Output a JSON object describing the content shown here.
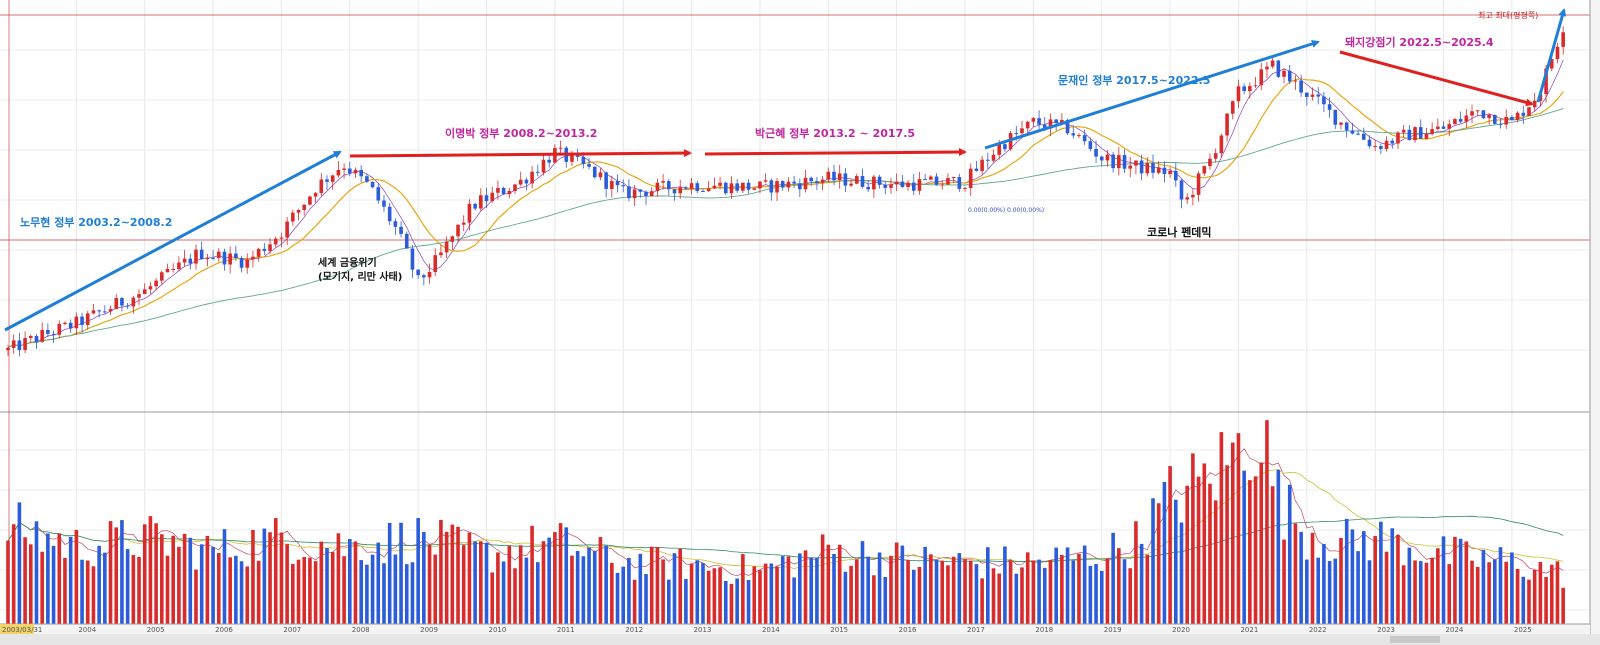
{
  "chart_data": {
    "type": "candlestick",
    "x_ticks": [
      "2004",
      "2005",
      "2006",
      "2007",
      "2008",
      "2009",
      "2010",
      "2011",
      "2012",
      "2013",
      "2014",
      "2015",
      "2016",
      "2017",
      "2018",
      "2019",
      "2020",
      "2021",
      "2022",
      "2023",
      "2024",
      "2025"
    ],
    "start_label": "2003/03/31",
    "price_ylim": [
      0,
      100
    ],
    "volume_ylim": [
      0,
      100
    ],
    "volume_rising_color": "#d92b2b",
    "volume_falling_color": "#2b5cd9",
    "close_trend_anchors": [
      {
        "x": 2003.0,
        "y": 5
      },
      {
        "x": 2003.5,
        "y": 10
      },
      {
        "x": 2004.0,
        "y": 14
      },
      {
        "x": 2005.0,
        "y": 25
      },
      {
        "x": 2005.8,
        "y": 38
      },
      {
        "x": 2006.5,
        "y": 35
      },
      {
        "x": 2007.0,
        "y": 45
      },
      {
        "x": 2007.5,
        "y": 60
      },
      {
        "x": 2007.9,
        "y": 68
      },
      {
        "x": 2008.3,
        "y": 60
      },
      {
        "x": 2008.7,
        "y": 45
      },
      {
        "x": 2009.0,
        "y": 28
      },
      {
        "x": 2009.3,
        "y": 36
      },
      {
        "x": 2009.8,
        "y": 54
      },
      {
        "x": 2010.5,
        "y": 62
      },
      {
        "x": 2011.0,
        "y": 72
      },
      {
        "x": 2011.5,
        "y": 66
      },
      {
        "x": 2012.0,
        "y": 58
      },
      {
        "x": 2013.0,
        "y": 61
      },
      {
        "x": 2014.0,
        "y": 60
      },
      {
        "x": 2015.0,
        "y": 63
      },
      {
        "x": 2016.0,
        "y": 61
      },
      {
        "x": 2017.0,
        "y": 62
      },
      {
        "x": 2017.5,
        "y": 74
      },
      {
        "x": 2018.0,
        "y": 82
      },
      {
        "x": 2018.5,
        "y": 80
      },
      {
        "x": 2019.0,
        "y": 70
      },
      {
        "x": 2019.5,
        "y": 67
      },
      {
        "x": 2020.0,
        "y": 65
      },
      {
        "x": 2020.2,
        "y": 54
      },
      {
        "x": 2020.6,
        "y": 70
      },
      {
        "x": 2021.0,
        "y": 92
      },
      {
        "x": 2021.5,
        "y": 101
      },
      {
        "x": 2022.0,
        "y": 92
      },
      {
        "x": 2022.5,
        "y": 82
      },
      {
        "x": 2023.0,
        "y": 74
      },
      {
        "x": 2023.5,
        "y": 78
      },
      {
        "x": 2024.0,
        "y": 80
      },
      {
        "x": 2024.5,
        "y": 86
      },
      {
        "x": 2025.0,
        "y": 82
      },
      {
        "x": 2025.4,
        "y": 92
      },
      {
        "x": 2025.8,
        "y": 118
      }
    ],
    "volume_anchors": [
      {
        "x": 2003.0,
        "y": 48
      },
      {
        "x": 2004.0,
        "y": 38
      },
      {
        "x": 2005.0,
        "y": 42
      },
      {
        "x": 2006.0,
        "y": 36
      },
      {
        "x": 2007.0,
        "y": 42
      },
      {
        "x": 2008.0,
        "y": 38
      },
      {
        "x": 2009.0,
        "y": 42
      },
      {
        "x": 2010.0,
        "y": 34
      },
      {
        "x": 2011.0,
        "y": 40
      },
      {
        "x": 2012.0,
        "y": 30
      },
      {
        "x": 2013.0,
        "y": 29
      },
      {
        "x": 2014.0,
        "y": 26
      },
      {
        "x": 2015.0,
        "y": 36
      },
      {
        "x": 2016.0,
        "y": 32
      },
      {
        "x": 2017.0,
        "y": 30
      },
      {
        "x": 2018.0,
        "y": 30
      },
      {
        "x": 2019.0,
        "y": 34
      },
      {
        "x": 2019.5,
        "y": 40
      },
      {
        "x": 2020.0,
        "y": 62
      },
      {
        "x": 2020.5,
        "y": 70
      },
      {
        "x": 2021.0,
        "y": 85
      },
      {
        "x": 2021.3,
        "y": 98
      },
      {
        "x": 2021.6,
        "y": 60
      },
      {
        "x": 2022.0,
        "y": 45
      },
      {
        "x": 2022.5,
        "y": 40
      },
      {
        "x": 2023.0,
        "y": 42
      },
      {
        "x": 2024.0,
        "y": 34
      },
      {
        "x": 2025.0,
        "y": 30
      },
      {
        "x": 2025.8,
        "y": 24
      }
    ],
    "annotations": {
      "roh": "노무현 정부 2003.2~2008.2",
      "crisis_line1": "세계 금융위기",
      "crisis_line2": "(모기지, 리만 사태)",
      "lee": "이명박 정부 2008.2~2013.2",
      "park": "박근혜 정부 2013.2 ~ 2017.5",
      "moon": "문재인 정부 2017.5~2022.5",
      "corona": "코로나 펜데믹",
      "yoon": "돼지강점기 2022.5~2025.4",
      "top_right": "최고 최대(평평쪽)",
      "small_readout": "0.00(0.00%)     0.00(0.00%)"
    }
  }
}
